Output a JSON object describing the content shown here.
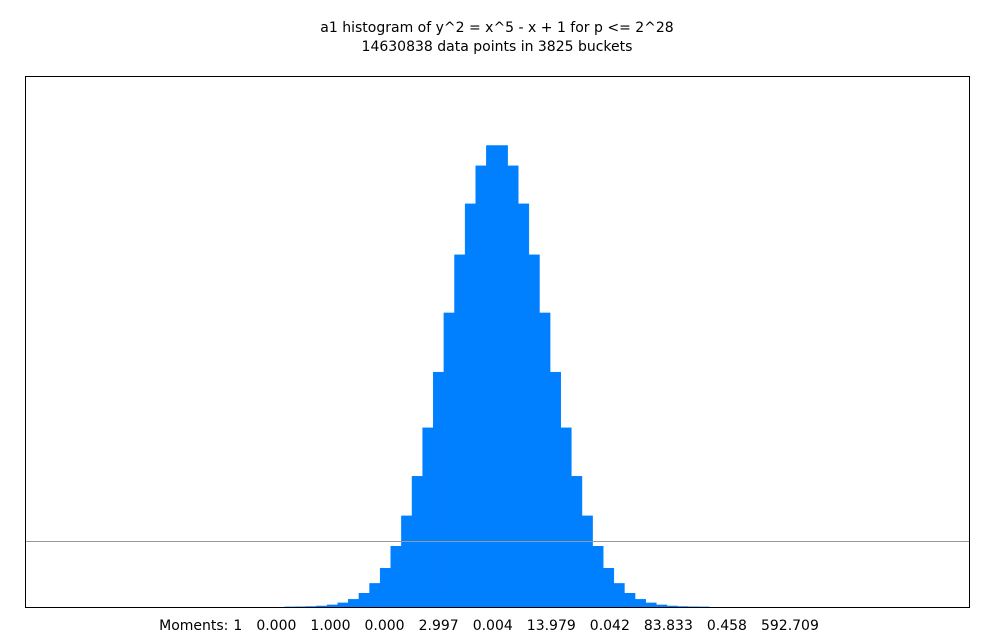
{
  "chart_data": {
    "type": "histogram",
    "title": "a1 histogram of y^2 = x^5 - x + 1 for p <= 2^28",
    "subtitle": "14630838 data points in 3825 buckets",
    "moments_label": "Moments:",
    "moments": [
      "1",
      "0.000",
      "1.000",
      "0.000",
      "2.997",
      "0.004",
      "13.979",
      "0.042",
      "83.833",
      "0.458",
      "592.709"
    ],
    "color": "#0080ff",
    "xlim": [
      -1,
      1
    ],
    "ylim": [
      0,
      1
    ],
    "bins": [
      -0.45,
      -0.4275,
      -0.405,
      -0.3825,
      -0.36,
      -0.3375,
      -0.315,
      -0.2925,
      -0.27,
      -0.2475,
      -0.225,
      -0.2025,
      -0.18,
      -0.1575,
      -0.135,
      -0.1125,
      -0.09,
      -0.0675,
      -0.045,
      -0.0225,
      0,
      0.0225,
      0.045,
      0.0675,
      0.09,
      0.1125,
      0.135,
      0.1575,
      0.18,
      0.2025,
      0.225,
      0.2475,
      0.27,
      0.2925,
      0.315,
      0.3375,
      0.36,
      0.3825,
      0.405,
      0.4275,
      0.45
    ],
    "values": [
      0.0002,
      0.0004,
      0.0009,
      0.0019,
      0.0039,
      0.0077,
      0.0144,
      0.0259,
      0.0444,
      0.0729,
      0.1144,
      0.1716,
      0.2461,
      0.3374,
      0.4422,
      0.5538,
      0.6632,
      0.7592,
      0.8308,
      0.8691,
      0.8691,
      0.8308,
      0.7592,
      0.6632,
      0.5538,
      0.4422,
      0.3374,
      0.2461,
      0.1716,
      0.1144,
      0.0729,
      0.0444,
      0.0259,
      0.0144,
      0.0077,
      0.0039,
      0.0019,
      0.0009,
      0.0004,
      0.0002
    ]
  }
}
